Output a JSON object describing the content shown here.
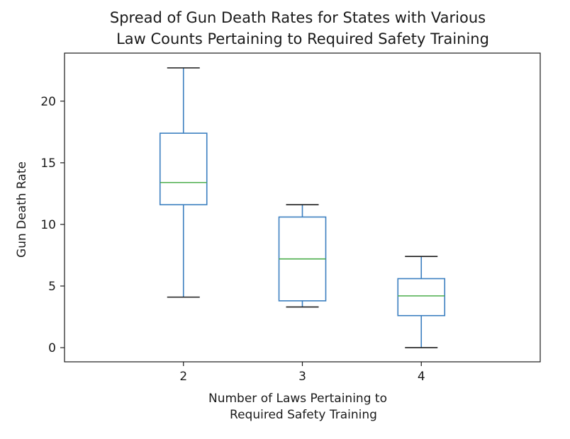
{
  "chart_data": {
    "type": "box",
    "title_lines": [
      "Spread of Gun Death Rates for States with Various",
      "Law Counts Pertaining to Required Safety Training"
    ],
    "xlabel_lines": [
      "Number of Laws Pertaining to",
      "Required Safety Training"
    ],
    "ylabel": "Gun Death Rate",
    "categories": [
      "2",
      "3",
      "4"
    ],
    "boxes": [
      {
        "category": "2",
        "whisker_low": 4.1,
        "q1": 11.6,
        "median": 13.4,
        "q3": 17.4,
        "whisker_high": 22.7
      },
      {
        "category": "3",
        "whisker_low": 3.3,
        "q1": 3.8,
        "median": 7.2,
        "q3": 10.6,
        "whisker_high": 11.6
      },
      {
        "category": "4",
        "whisker_low": 0.0,
        "q1": 2.6,
        "median": 4.2,
        "q3": 5.6,
        "whisker_high": 7.4
      }
    ],
    "yticks": [
      0,
      5,
      10,
      15,
      20
    ],
    "ylim": [
      -1.15,
      23.9
    ],
    "grid": false,
    "colors": {
      "box": "#3b7fc0",
      "median": "#4cae4c",
      "axes": "#1a1a1a"
    }
  }
}
